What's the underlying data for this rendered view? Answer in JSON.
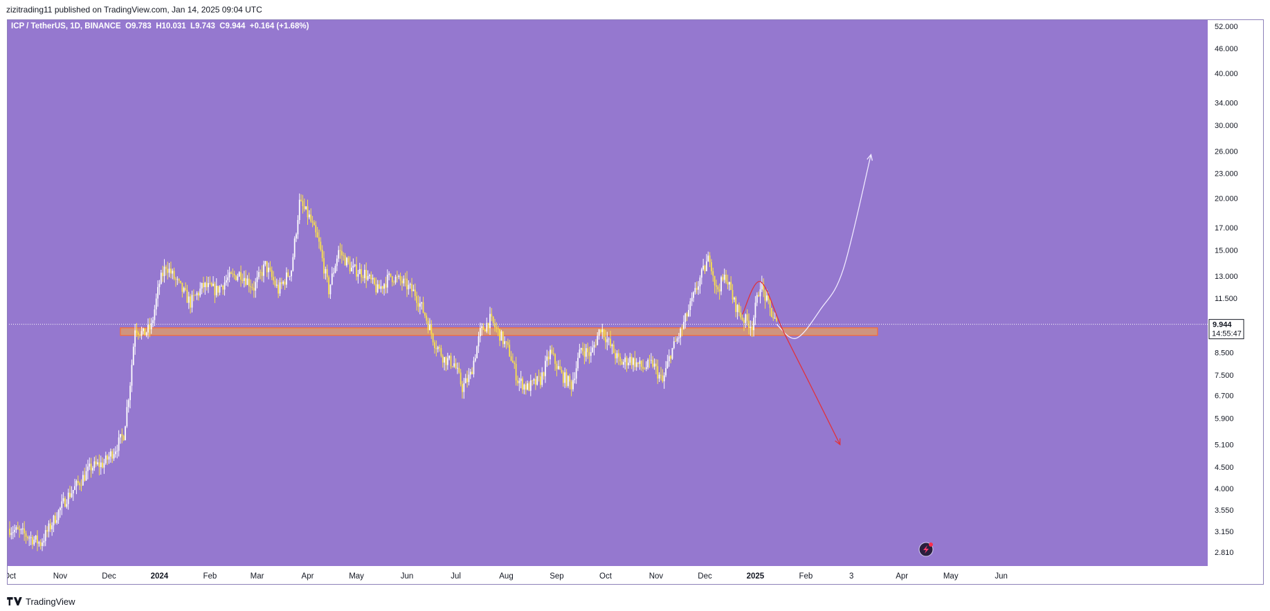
{
  "header": {
    "published": "zizitrading11 published on TradingView.com, Jan 14, 2025 09:04 UTC"
  },
  "footer": {
    "brand": "TradingView"
  },
  "chart_data": {
    "type": "candlestick",
    "legend": "ICP / TetherUS, 1D, BINANCE  O9.783  H10.031  L9.743  C9.944  +0.164 (+1.68%)",
    "y_scale": "log",
    "ylim": [
      2.6,
      54
    ],
    "y_ticks": [
      "52.000",
      "46.000",
      "40.000",
      "34.000",
      "30.000",
      "26.000",
      "23.000",
      "20.000",
      "17.000",
      "15.000",
      "13.000",
      "11.500",
      "8.500",
      "7.500",
      "6.700",
      "5.900",
      "5.100",
      "4.500",
      "4.000",
      "3.550",
      "3.150",
      "2.810"
    ],
    "x_ticks": [
      "Oct",
      "Nov",
      "Dec",
      "2024",
      "Feb",
      "Mar",
      "Apr",
      "May",
      "Jun",
      "Jul",
      "Aug",
      "Sep",
      "Oct",
      "Nov",
      "Dec",
      "2025",
      "Feb",
      "3",
      "Apr",
      "May",
      "Jun"
    ],
    "last_price": {
      "value": "9.944",
      "countdown": "14:55:47"
    },
    "support_zone": {
      "low": 9.35,
      "high": 9.75,
      "from": "2023-12-08",
      "to": "2025-03-17"
    },
    "price_path": [
      [
        "2023-10-01",
        3.2
      ],
      [
        "2023-10-10",
        3.1
      ],
      [
        "2023-10-20",
        2.95
      ],
      [
        "2023-10-28",
        3.35
      ],
      [
        "2023-11-05",
        3.8
      ],
      [
        "2023-11-12",
        4.1
      ],
      [
        "2023-11-20",
        4.5
      ],
      [
        "2023-11-28",
        4.6
      ],
      [
        "2023-12-05",
        5.0
      ],
      [
        "2023-12-10",
        5.4
      ],
      [
        "2023-12-14",
        7.2
      ],
      [
        "2023-12-17",
        9.8
      ],
      [
        "2023-12-22",
        9.4
      ],
      [
        "2023-12-27",
        9.8
      ],
      [
        "2024-01-01",
        12.5
      ],
      [
        "2024-01-05",
        13.8
      ],
      [
        "2024-01-12",
        12.5
      ],
      [
        "2024-01-20",
        11.2
      ],
      [
        "2024-01-28",
        12.3
      ],
      [
        "2024-02-05",
        12.0
      ],
      [
        "2024-02-12",
        12.8
      ],
      [
        "2024-02-20",
        13.2
      ],
      [
        "2024-02-28",
        12.2
      ],
      [
        "2024-03-06",
        13.8
      ],
      [
        "2024-03-14",
        12.0
      ],
      [
        "2024-03-22",
        13.5
      ],
      [
        "2024-03-27",
        19.5
      ],
      [
        "2024-04-02",
        18.0
      ],
      [
        "2024-04-08",
        15.5
      ],
      [
        "2024-04-14",
        12.0
      ],
      [
        "2024-04-20",
        15.0
      ],
      [
        "2024-04-28",
        13.5
      ],
      [
        "2024-05-06",
        13.2
      ],
      [
        "2024-05-14",
        12.0
      ],
      [
        "2024-05-22",
        13.0
      ],
      [
        "2024-05-30",
        12.5
      ],
      [
        "2024-06-06",
        11.8
      ],
      [
        "2024-06-12",
        10.5
      ],
      [
        "2024-06-18",
        9.0
      ],
      [
        "2024-06-24",
        8.2
      ],
      [
        "2024-06-30",
        8.0
      ],
      [
        "2024-07-05",
        7.0
      ],
      [
        "2024-07-10",
        7.5
      ],
      [
        "2024-07-16",
        9.5
      ],
      [
        "2024-07-22",
        10.2
      ],
      [
        "2024-07-28",
        9.4
      ],
      [
        "2024-08-03",
        8.5
      ],
      [
        "2024-08-08",
        7.3
      ],
      [
        "2024-08-14",
        7.0
      ],
      [
        "2024-08-22",
        7.3
      ],
      [
        "2024-08-28",
        8.5
      ],
      [
        "2024-09-04",
        7.5
      ],
      [
        "2024-09-10",
        7.1
      ],
      [
        "2024-09-16",
        8.7
      ],
      [
        "2024-09-22",
        8.4
      ],
      [
        "2024-09-28",
        9.8
      ],
      [
        "2024-10-04",
        8.8
      ],
      [
        "2024-10-10",
        8.0
      ],
      [
        "2024-10-16",
        8.2
      ],
      [
        "2024-10-24",
        7.8
      ],
      [
        "2024-10-30",
        8.0
      ],
      [
        "2024-11-05",
        7.2
      ],
      [
        "2024-11-10",
        8.5
      ],
      [
        "2024-11-16",
        9.5
      ],
      [
        "2024-11-22",
        11.0
      ],
      [
        "2024-11-28",
        12.8
      ],
      [
        "2024-12-04",
        14.5
      ],
      [
        "2024-12-08",
        12.0
      ],
      [
        "2024-12-14",
        13.0
      ],
      [
        "2024-12-19",
        11.2
      ],
      [
        "2024-12-24",
        10.3
      ],
      [
        "2024-12-30",
        9.9
      ],
      [
        "2025-01-04",
        12.5
      ],
      [
        "2025-01-09",
        11.0
      ],
      [
        "2025-01-14",
        9.944
      ]
    ],
    "projections": [
      {
        "name": "bullish",
        "color": "#f0eaff",
        "points": [
          [
            "2025-01-14",
            9.944
          ],
          [
            "2025-01-26",
            9.2
          ],
          [
            "2025-02-10",
            10.8
          ],
          [
            "2025-02-24",
            13.5
          ],
          [
            "2025-03-13",
            25.5
          ]
        ]
      },
      {
        "name": "bearish",
        "color": "#e0323c",
        "points": [
          [
            "2024-12-24",
            10.5
          ],
          [
            "2025-01-04",
            12.6
          ],
          [
            "2025-01-18",
            9.6
          ],
          [
            "2025-02-03",
            7.2
          ],
          [
            "2025-02-22",
            5.1
          ]
        ]
      }
    ],
    "grid": false,
    "colors": {
      "background": "#9578cf",
      "candle_up": "#ffffff",
      "candle_down": "#fce34a",
      "zone_fill": "#f7a64a",
      "zone_border": "#ff6d2e",
      "axis_text": "#131722"
    }
  }
}
